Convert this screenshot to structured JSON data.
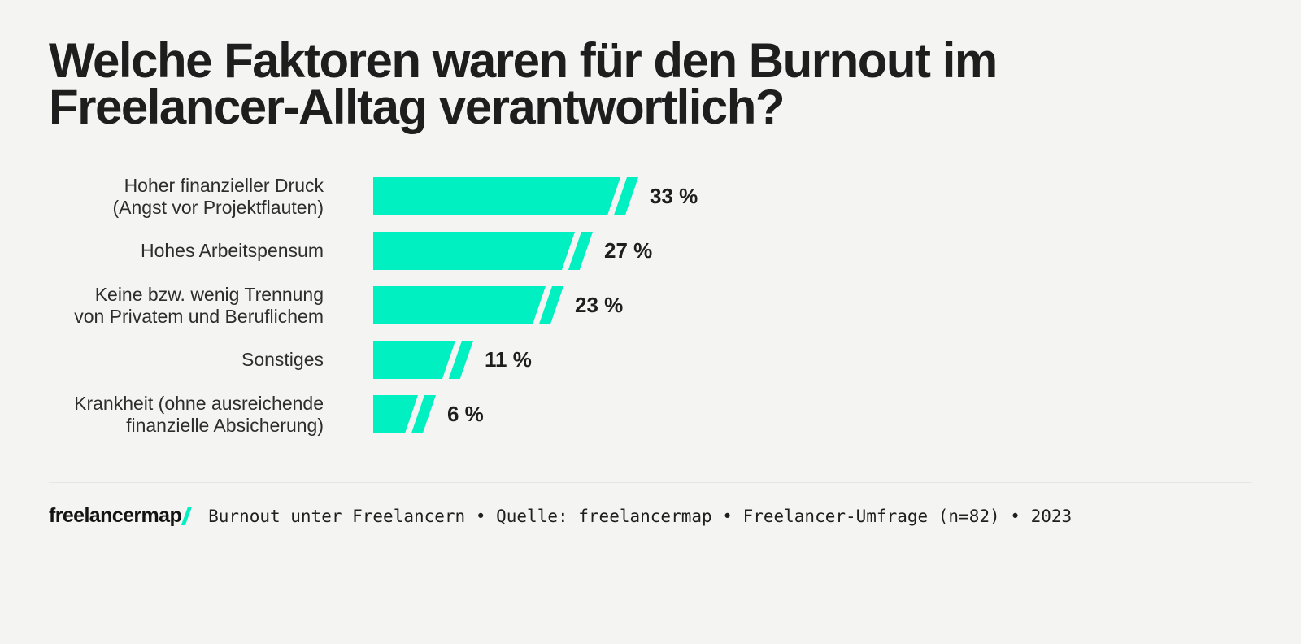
{
  "theme": {
    "background": "#f4f4f2",
    "accent": "#00f0c2",
    "ink": "#1e1e1e",
    "divider": "#e7e7e5"
  },
  "title": "Welche Faktoren waren für den Burnout im Freelancer-Alltag verantwortlich?",
  "title_display": "Welche Faktoren waren für den Burnout im\nFreelancer-Alltag verantwortlich?",
  "chart_data": {
    "type": "bar",
    "orientation": "horizontal",
    "title": "Welche Faktoren waren für den Burnout im Freelancer-Alltag verantwortlich?",
    "unit": "%",
    "bar_color": "#00f0c2",
    "xlim": [
      0,
      35
    ],
    "grid": false,
    "legend": false,
    "categories": [
      "Hoher finanzieller Druck (Angst vor Projektflauten)",
      "Hohes Arbeitspensum",
      "Keine bzw. wenig Trennung von Privatem und Beruflichem",
      "Sonstiges",
      "Krankheit (ohne ausreichende finanzielle Absicherung)"
    ],
    "categories_display": [
      "Hoher finanzieller Druck\n(Angst vor Projektflauten)",
      "Hohes Arbeitspensum",
      "Keine bzw. wenig Trennung\nvon Privatem und Beruflichem",
      "Sonstiges",
      "Krankheit (ohne ausreichende\nfinanzielle Absicherung)"
    ],
    "values": [
      33,
      27,
      23,
      11,
      6
    ],
    "value_labels": [
      "33 %",
      "27 %",
      "23 %",
      "11 %",
      "6 %"
    ]
  },
  "footer": {
    "logo_text": "freelancermap",
    "logo_slash": "/",
    "source_text": "Burnout unter Freelancern • Quelle: freelancermap • Freelancer-Umfrage (n=82) • 2023"
  }
}
